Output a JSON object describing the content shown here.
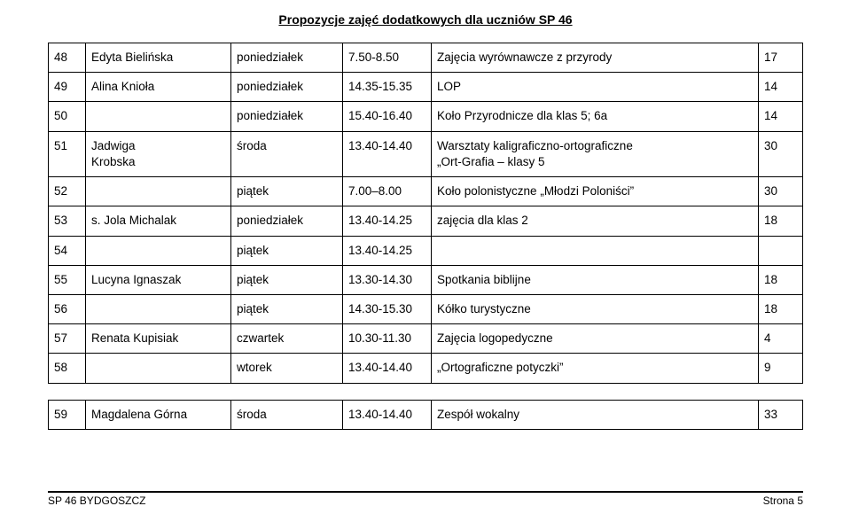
{
  "header": {
    "title": "Propozycje zajęć dodatkowych dla uczniów SP 46"
  },
  "rows": [
    {
      "num": "48",
      "name": "Edyta Bielińska",
      "day": "poniedziałek",
      "time": "7.50-8.50",
      "desc": "Zajęcia wyrównawcze z przyrody",
      "count": "17"
    },
    {
      "num": "49",
      "name": "Alina Knioła",
      "day": "poniedziałek",
      "time": "14.35-15.35",
      "desc": "LOP",
      "count": "14"
    },
    {
      "num": "50",
      "name": "",
      "day": "poniedziałek",
      "time": "15.40-16.40",
      "desc": "Koło Przyrodnicze dla klas 5; 6a",
      "count": "14"
    },
    {
      "num": "51",
      "name": "Jadwiga\nKrobska",
      "day": "środa",
      "time": "13.40-14.40",
      "desc": "Warsztaty kaligraficzno-ortograficzne\n„Ort-Grafia – klasy 5",
      "count": "30"
    },
    {
      "num": "52",
      "name": "",
      "day": "piątek",
      "time": "7.00–8.00",
      "desc": "Koło polonistyczne „Młodzi Poloniści”",
      "count": "30"
    },
    {
      "num": "53",
      "name": "s. Jola Michalak",
      "day": "poniedziałek",
      "time": "13.40-14.25",
      "desc": "zajęcia dla klas 2",
      "count": "18"
    },
    {
      "num": "54",
      "name": "",
      "day": "piątek",
      "time": "13.40-14.25",
      "desc": "",
      "count": ""
    },
    {
      "num": "55",
      "name": "Lucyna Ignaszak",
      "day": "piątek",
      "time": "13.30-14.30",
      "desc": "Spotkania biblijne",
      "count": "18"
    },
    {
      "num": "56",
      "name": "",
      "day": "piątek",
      "time": "14.30-15.30",
      "desc": "Kółko turystyczne",
      "count": "18"
    },
    {
      "num": "57",
      "name": "Renata Kupisiak",
      "day": "czwartek",
      "time": "10.30-11.30",
      "desc": "Zajęcia logopedyczne",
      "count": "4"
    },
    {
      "num": "58",
      "name": "",
      "day": "wtorek",
      "time": "13.40-14.40",
      "desc": "„Ortograficzne potyczki”",
      "count": "9"
    }
  ],
  "rows2": [
    {
      "num": "59",
      "name": "Magdalena Górna",
      "day": "środa",
      "time": "13.40-14.40",
      "desc": "Zespół wokalny",
      "count": "33"
    }
  ],
  "footer": {
    "left": "SP 46 BYDGOSZCZ",
    "right": "Strona 5"
  }
}
